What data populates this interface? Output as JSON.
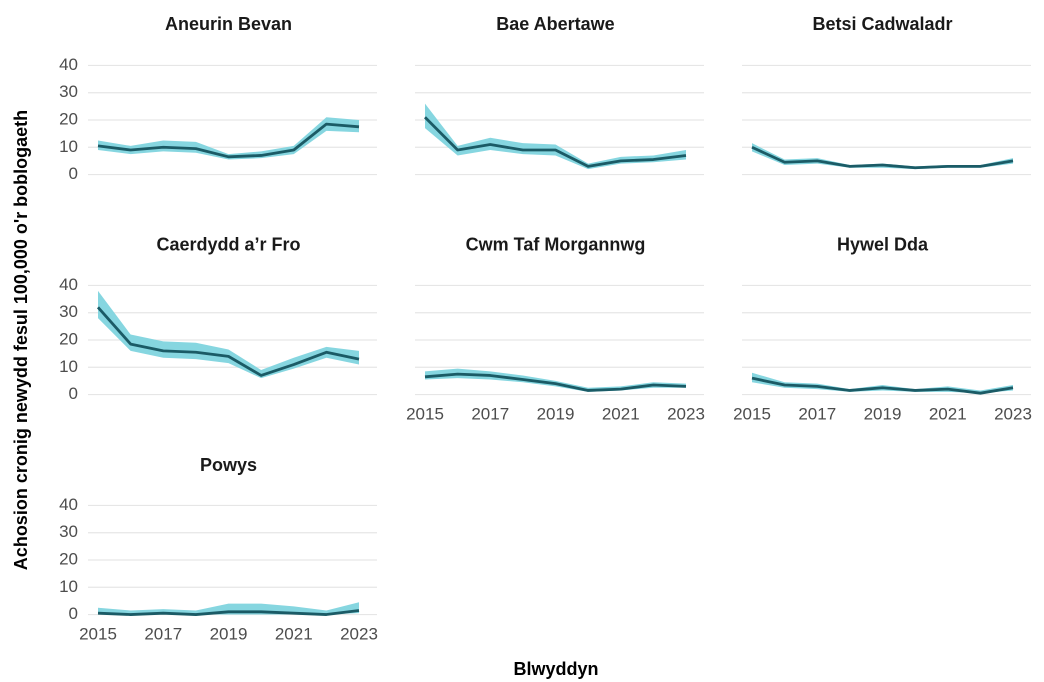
{
  "axis_labels": {
    "x": "Blwyddyn",
    "y": "Achosion cronig newydd fesul 100,000 o'r boblogaeth"
  },
  "chart_data": [
    {
      "type": "line",
      "title": "Aneurin Bevan",
      "x": [
        2015,
        2016,
        2017,
        2018,
        2019,
        2020,
        2021,
        2022,
        2023
      ],
      "xlim": [
        2015,
        2023
      ],
      "xticks": [
        2015,
        2017,
        2019,
        2021,
        2023
      ],
      "ylim": [
        -2,
        42
      ],
      "yticks": [
        0,
        10,
        20,
        30,
        40
      ],
      "grid": true,
      "series": [
        {
          "color": "#1b5b66",
          "band_color": "#86d6e0",
          "values": [
            10.5,
            9,
            10,
            9.5,
            6.5,
            7,
            9,
            18.5,
            17.5
          ],
          "lower": [
            9,
            7.5,
            8.5,
            8,
            5.5,
            6,
            7.5,
            16,
            15.5
          ],
          "upper": [
            12.5,
            10.5,
            12.5,
            12,
            7.5,
            8.5,
            10.5,
            21,
            20
          ]
        }
      ]
    },
    {
      "type": "line",
      "title": "Bae Abertawe",
      "x": [
        2015,
        2016,
        2017,
        2018,
        2019,
        2020,
        2021,
        2022,
        2023
      ],
      "xlim": [
        2015,
        2023
      ],
      "xticks": [
        2015,
        2017,
        2019,
        2021,
        2023
      ],
      "ylim": [
        -2,
        42
      ],
      "yticks": [
        0,
        10,
        20,
        30,
        40
      ],
      "grid": true,
      "series": [
        {
          "color": "#1b5b66",
          "band_color": "#86d6e0",
          "values": [
            21,
            9,
            11,
            9,
            9,
            3,
            5,
            5.5,
            7
          ],
          "lower": [
            17,
            7,
            9,
            7.5,
            7,
            2,
            4,
            4.5,
            5.5
          ],
          "upper": [
            26,
            10.5,
            13.5,
            11.5,
            11,
            4,
            6.5,
            7,
            9
          ]
        }
      ]
    },
    {
      "type": "line",
      "title": "Betsi Cadwaladr",
      "x": [
        2015,
        2016,
        2017,
        2018,
        2019,
        2020,
        2021,
        2022,
        2023
      ],
      "xlim": [
        2015,
        2023
      ],
      "xticks": [
        2015,
        2017,
        2019,
        2021,
        2023
      ],
      "ylim": [
        -2,
        42
      ],
      "yticks": [
        0,
        10,
        20,
        30,
        40
      ],
      "grid": true,
      "series": [
        {
          "color": "#1b5b66",
          "band_color": "#86d6e0",
          "values": [
            10,
            4.5,
            5,
            3,
            3.5,
            2.5,
            3,
            3,
            5
          ],
          "lower": [
            8.5,
            3.5,
            4,
            2.5,
            2.5,
            2,
            2.5,
            2.5,
            4
          ],
          "upper": [
            11.5,
            5.5,
            6,
            3.5,
            4,
            3,
            3.5,
            3.5,
            6
          ]
        }
      ]
    },
    {
      "type": "line",
      "title": "Caerdydd a’r Fro",
      "x": [
        2015,
        2016,
        2017,
        2018,
        2019,
        2020,
        2021,
        2022,
        2023
      ],
      "xlim": [
        2015,
        2023
      ],
      "xticks": [
        2015,
        2017,
        2019,
        2021,
        2023
      ],
      "ylim": [
        -2,
        42
      ],
      "yticks": [
        0,
        10,
        20,
        30,
        40
      ],
      "grid": true,
      "series": [
        {
          "color": "#1b5b66",
          "band_color": "#86d6e0",
          "values": [
            32,
            18.5,
            16,
            15.5,
            14,
            7,
            11,
            15.5,
            13
          ],
          "lower": [
            28,
            16,
            13.5,
            13,
            11.5,
            6,
            9.5,
            13.5,
            11
          ],
          "upper": [
            38,
            22,
            19.5,
            19,
            16.5,
            9,
            13.5,
            17.5,
            16
          ]
        }
      ]
    },
    {
      "type": "line",
      "title": "Cwm Taf Morgannwg",
      "x": [
        2015,
        2016,
        2017,
        2018,
        2019,
        2020,
        2021,
        2022,
        2023
      ],
      "xlim": [
        2015,
        2023
      ],
      "xticks": [
        2015,
        2017,
        2019,
        2021,
        2023
      ],
      "ylim": [
        -2,
        42
      ],
      "yticks": [
        0,
        10,
        20,
        30,
        40
      ],
      "grid": true,
      "series": [
        {
          "color": "#1b5b66",
          "band_color": "#86d6e0",
          "values": [
            6.5,
            7.5,
            7,
            5.5,
            4,
            1.5,
            2,
            3.5,
            3
          ],
          "lower": [
            5.5,
            6,
            5.5,
            4.5,
            3,
            1,
            1.5,
            2.5,
            2.5
          ],
          "upper": [
            8.5,
            9.5,
            8.5,
            7,
            5,
            2.5,
            3,
            4.5,
            4
          ]
        }
      ]
    },
    {
      "type": "line",
      "title": "Hywel Dda",
      "x": [
        2015,
        2016,
        2017,
        2018,
        2019,
        2020,
        2021,
        2022,
        2023
      ],
      "xlim": [
        2015,
        2023
      ],
      "xticks": [
        2015,
        2017,
        2019,
        2021,
        2023
      ],
      "ylim": [
        -2,
        42
      ],
      "yticks": [
        0,
        10,
        20,
        30,
        40
      ],
      "grid": true,
      "series": [
        {
          "color": "#1b5b66",
          "band_color": "#86d6e0",
          "values": [
            6,
            3.5,
            3,
            1.5,
            2.5,
            1.5,
            2,
            0.5,
            2.5
          ],
          "lower": [
            4.5,
            2.5,
            2,
            1,
            1.5,
            1,
            1,
            0.5,
            1.5
          ],
          "upper": [
            8,
            4.5,
            4,
            2,
            3.5,
            2,
            3,
            1.5,
            3.5
          ]
        }
      ]
    },
    {
      "type": "line",
      "title": "Powys",
      "x": [
        2015,
        2016,
        2017,
        2018,
        2019,
        2020,
        2021,
        2022,
        2023
      ],
      "xlim": [
        2015,
        2023
      ],
      "xticks": [
        2015,
        2017,
        2019,
        2021,
        2023
      ],
      "ylim": [
        -2,
        42
      ],
      "yticks": [
        0,
        10,
        20,
        30,
        40
      ],
      "grid": true,
      "series": [
        {
          "color": "#1b5b66",
          "band_color": "#86d6e0",
          "values": [
            0.5,
            0,
            0.5,
            0,
            1,
            1,
            0.5,
            0,
            1.5
          ],
          "lower": [
            0,
            0,
            0,
            0,
            0,
            0,
            0,
            0,
            0.5
          ],
          "upper": [
            2.5,
            1.5,
            2,
            1.5,
            4,
            4,
            3,
            1.5,
            4.5
          ]
        }
      ]
    }
  ]
}
